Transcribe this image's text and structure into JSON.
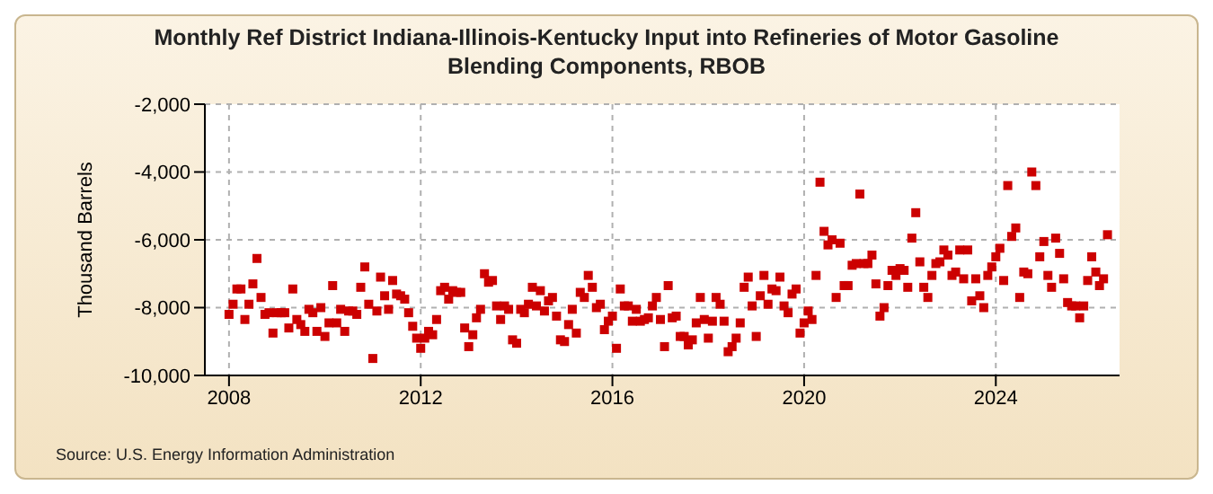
{
  "chart_data": {
    "type": "scatter",
    "title": "Monthly Ref District Indiana-Illinois-Kentucky Input into Refineries of Motor Gasoline Blending Components, RBOB",
    "ylabel": "Thousand Barrels",
    "annotations": [
      "Source: U.S. Energy Information Administration"
    ],
    "series": [
      {
        "color": "#cc0000",
        "x": [
          "2008-01",
          "2008-02",
          "2008-03",
          "2008-04",
          "2008-05",
          "2008-06",
          "2008-07",
          "2008-08",
          "2008-09",
          "2008-10",
          "2008-11",
          "2008-12",
          "2009-01",
          "2009-02",
          "2009-03",
          "2009-04",
          "2009-05",
          "2009-06",
          "2009-07",
          "2009-08",
          "2009-09",
          "2009-10",
          "2009-11",
          "2009-12",
          "2010-01",
          "2010-02",
          "2010-03",
          "2010-04",
          "2010-05",
          "2010-06",
          "2010-07",
          "2010-08",
          "2010-09",
          "2010-10",
          "2010-11",
          "2010-12",
          "2011-01",
          "2011-02",
          "2011-03",
          "2011-04",
          "2011-05",
          "2011-06",
          "2011-07",
          "2011-08",
          "2011-09",
          "2011-10",
          "2011-11",
          "2011-12",
          "2012-01",
          "2012-02",
          "2012-03",
          "2012-04",
          "2012-05",
          "2012-06",
          "2012-07",
          "2012-08",
          "2012-09",
          "2012-10",
          "2012-11",
          "2012-12",
          "2013-01",
          "2013-02",
          "2013-03",
          "2013-04",
          "2013-05",
          "2013-06",
          "2013-07",
          "2013-08",
          "2013-09",
          "2013-10",
          "2013-11",
          "2013-12",
          "2014-01",
          "2014-02",
          "2014-03",
          "2014-04",
          "2014-05",
          "2014-06",
          "2014-07",
          "2014-08",
          "2014-09",
          "2014-10",
          "2014-11",
          "2014-12",
          "2015-01",
          "2015-02",
          "2015-03",
          "2015-04",
          "2015-05",
          "2015-06",
          "2015-07",
          "2015-08",
          "2015-09",
          "2015-10",
          "2015-11",
          "2015-12",
          "2016-01",
          "2016-02",
          "2016-03",
          "2016-04",
          "2016-05",
          "2016-06",
          "2016-07",
          "2016-08",
          "2016-09",
          "2016-10",
          "2016-11",
          "2016-12",
          "2017-01",
          "2017-02",
          "2017-03",
          "2017-04",
          "2017-05",
          "2017-06",
          "2017-07",
          "2017-08",
          "2017-09",
          "2017-10",
          "2017-11",
          "2017-12",
          "2018-01",
          "2018-02",
          "2018-03",
          "2018-04",
          "2018-05",
          "2018-06",
          "2018-07",
          "2018-08",
          "2018-09",
          "2018-10",
          "2018-11",
          "2018-12",
          "2019-01",
          "2019-02",
          "2019-03",
          "2019-04",
          "2019-05",
          "2019-06",
          "2019-07",
          "2019-08",
          "2019-09",
          "2019-10",
          "2019-11",
          "2019-12",
          "2020-01",
          "2020-02",
          "2020-03",
          "2020-04",
          "2020-05",
          "2020-06",
          "2020-07",
          "2020-08",
          "2020-09",
          "2020-10",
          "2020-11",
          "2020-12",
          "2021-01",
          "2021-02",
          "2021-03",
          "2021-04",
          "2021-05",
          "2021-06",
          "2021-07",
          "2021-08",
          "2021-09",
          "2021-10",
          "2021-11",
          "2021-12",
          "2022-01",
          "2022-02",
          "2022-03",
          "2022-04",
          "2022-05",
          "2022-06",
          "2022-07",
          "2022-08",
          "2022-09",
          "2022-10",
          "2022-11",
          "2022-12",
          "2023-01",
          "2023-02",
          "2023-03",
          "2023-04",
          "2023-05",
          "2023-06",
          "2023-07",
          "2023-08",
          "2023-09",
          "2023-10",
          "2023-11",
          "2023-12",
          "2024-01",
          "2024-02",
          "2024-03",
          "2024-04",
          "2024-05",
          "2024-06",
          "2024-07",
          "2024-08",
          "2024-09",
          "2024-10",
          "2024-11",
          "2024-12",
          "2025-01",
          "2025-02",
          "2025-03",
          "2025-04",
          "2025-05",
          "2025-06",
          "2025-07",
          "2025-08",
          "2025-09",
          "2025-10",
          "2025-11",
          "2025-12",
          "2026-01",
          "2026-02",
          "2026-03",
          "2026-04",
          "2026-05"
        ],
        "values": [
          -8200,
          -7900,
          -7450,
          -7450,
          -8350,
          -7900,
          -7300,
          -6550,
          -7700,
          -8200,
          -8150,
          -8750,
          -8150,
          -8150,
          -8150,
          -8600,
          -7450,
          -8350,
          -8500,
          -8700,
          -8050,
          -8150,
          -8700,
          -8000,
          -8850,
          -8450,
          -7350,
          -8450,
          -8050,
          -8700,
          -8100,
          -8100,
          -8200,
          -7400,
          -6800,
          -7900,
          -9500,
          -8100,
          -7100,
          -7650,
          -8050,
          -7200,
          -7600,
          -7650,
          -7750,
          -8150,
          -8550,
          -8900,
          -9200,
          -8900,
          -8700,
          -8800,
          -8350,
          -7500,
          -7400,
          -7750,
          -7500,
          -7550,
          -7550,
          -8600,
          -9150,
          -8800,
          -8300,
          -8050,
          -7000,
          -7250,
          -7200,
          -7950,
          -8350,
          -7950,
          -8050,
          -8950,
          -9050,
          -8050,
          -8150,
          -7900,
          -7400,
          -7950,
          -7500,
          -8100,
          -7800,
          -7700,
          -8250,
          -8950,
          -9000,
          -8500,
          -8050,
          -8750,
          -7550,
          -7700,
          -7050,
          -7400,
          -8000,
          -7900,
          -8650,
          -8400,
          -8250,
          -9200,
          -7450,
          -7950,
          -7950,
          -8400,
          -8050,
          -8400,
          -8350,
          -8300,
          -7950,
          -7700,
          -8350,
          -9150,
          -7350,
          -8300,
          -8250,
          -8850,
          -8850,
          -9100,
          -8950,
          -8450,
          -7700,
          -8350,
          -8900,
          -8400,
          -7700,
          -7900,
          -8400,
          -9300,
          -9150,
          -8900,
          -8450,
          -7400,
          -7100,
          -7950,
          -8850,
          -7650,
          -7050,
          -7900,
          -7450,
          -7500,
          -7100,
          -7950,
          -8150,
          -7600,
          -7450,
          -8750,
          -8450,
          -8100,
          -8350,
          -7050,
          -4300,
          -5750,
          -6150,
          -6000,
          -7700,
          -6100,
          -7350,
          -7350,
          -6750,
          -6700,
          -4650,
          -6700,
          -6700,
          -6450,
          -7300,
          -8250,
          -8000,
          -7350,
          -6900,
          -7050,
          -6850,
          -6900,
          -7400,
          -5950,
          -5200,
          -6650,
          -7400,
          -7700,
          -7050,
          -6700,
          -6650,
          -6300,
          -6450,
          -7050,
          -6950,
          -6300,
          -7150,
          -6300,
          -7800,
          -7150,
          -7650,
          -8000,
          -7050,
          -6800,
          -6500,
          -6250,
          -7200,
          -4400,
          -5900,
          -5650,
          -7700,
          -6950,
          -7000,
          -4000,
          -4400,
          -6500,
          -6050,
          -7050,
          -7400,
          -5950,
          -6400,
          -7150,
          -7850,
          -7950,
          -7950,
          -8300,
          -7950,
          -7200,
          -6500,
          -6950,
          -7350,
          -7150,
          -5850
        ]
      }
    ],
    "xlim": [
      "2007-07",
      "2026-08"
    ],
    "xticks": [
      "2008",
      "2012",
      "2016",
      "2020",
      "2024"
    ],
    "ylim": [
      -10000,
      -2000
    ],
    "yticks": [
      {
        "value": -10000,
        "label": "-10,000"
      },
      {
        "value": -8000,
        "label": "-8,000"
      },
      {
        "value": -6000,
        "label": "-6,000"
      },
      {
        "value": -4000,
        "label": "-4,000"
      },
      {
        "value": -2000,
        "label": "-2,000"
      }
    ],
    "grid": true,
    "marker": "square"
  }
}
